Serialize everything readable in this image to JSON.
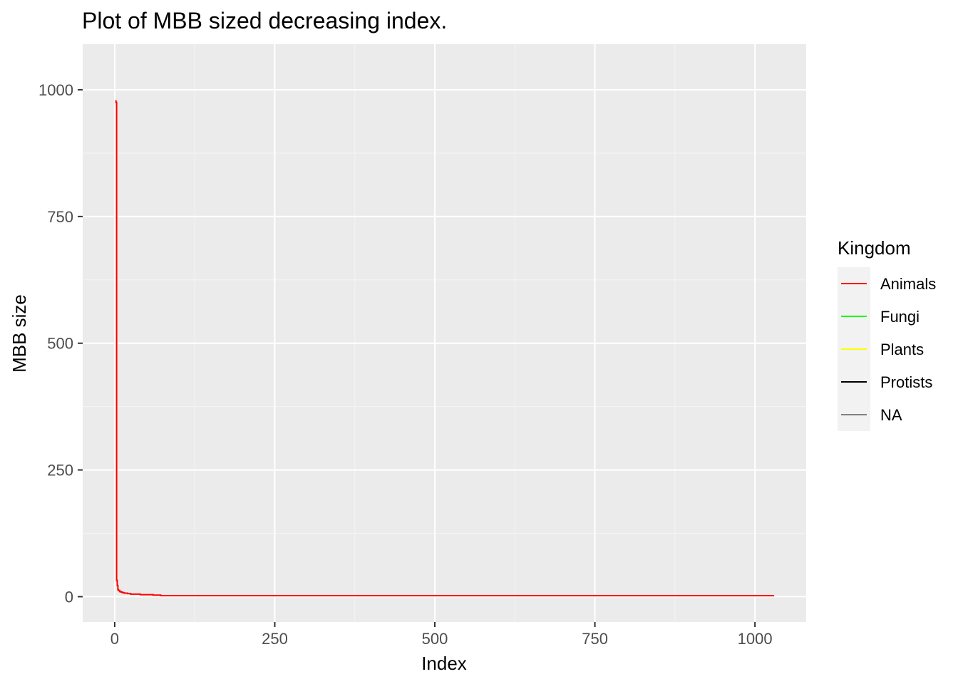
{
  "chart_data": {
    "type": "line",
    "title": "Plot  of MBB sized  decreasing index.",
    "xlabel": "Index",
    "ylabel": "MBB size",
    "xlim": [
      -50,
      1080
    ],
    "ylim": [
      -50,
      1090
    ],
    "x_ticks": [
      0,
      250,
      500,
      750,
      1000
    ],
    "x_tick_labels": [
      "0",
      "250",
      "500",
      "750",
      "1000"
    ],
    "y_ticks": [
      0,
      250,
      500,
      750,
      1000
    ],
    "y_tick_labels": [
      "0",
      "250",
      "500",
      "750",
      "1000"
    ],
    "x_minor": [
      125,
      375,
      625,
      875
    ],
    "y_minor": [
      125,
      375,
      625,
      875
    ],
    "grid": true,
    "legend": {
      "title": "Kingdom",
      "position": "right",
      "entries": [
        {
          "label": "Animals",
          "color": "#ff0000"
        },
        {
          "label": "Fungi",
          "color": "#00ff00"
        },
        {
          "label": "Plants",
          "color": "#ffff00"
        },
        {
          "label": "Protists",
          "color": "#000000"
        },
        {
          "label": "NA",
          "color": "#808080"
        }
      ]
    },
    "series": [
      {
        "name": "Animals",
        "color": "#ff0000",
        "x": [
          1,
          2,
          3,
          4,
          5,
          6,
          8,
          10,
          12,
          15,
          20,
          25,
          30,
          40,
          50,
          60,
          72,
          100,
          200,
          400,
          600,
          800,
          1000,
          1030
        ],
        "y": [
          978,
          975,
          32,
          22,
          14,
          12,
          10,
          9,
          8,
          7,
          6,
          5,
          5,
          4,
          4,
          3,
          2,
          2,
          2,
          2,
          2,
          2,
          2,
          2
        ]
      }
    ]
  },
  "colors": {
    "panel_bg": "#ebebeb",
    "grid_major": "#ffffff",
    "grid_minor": "#f5f5f5",
    "legend_key_bg": "#f2f2f2",
    "tick_color": "#333333"
  }
}
